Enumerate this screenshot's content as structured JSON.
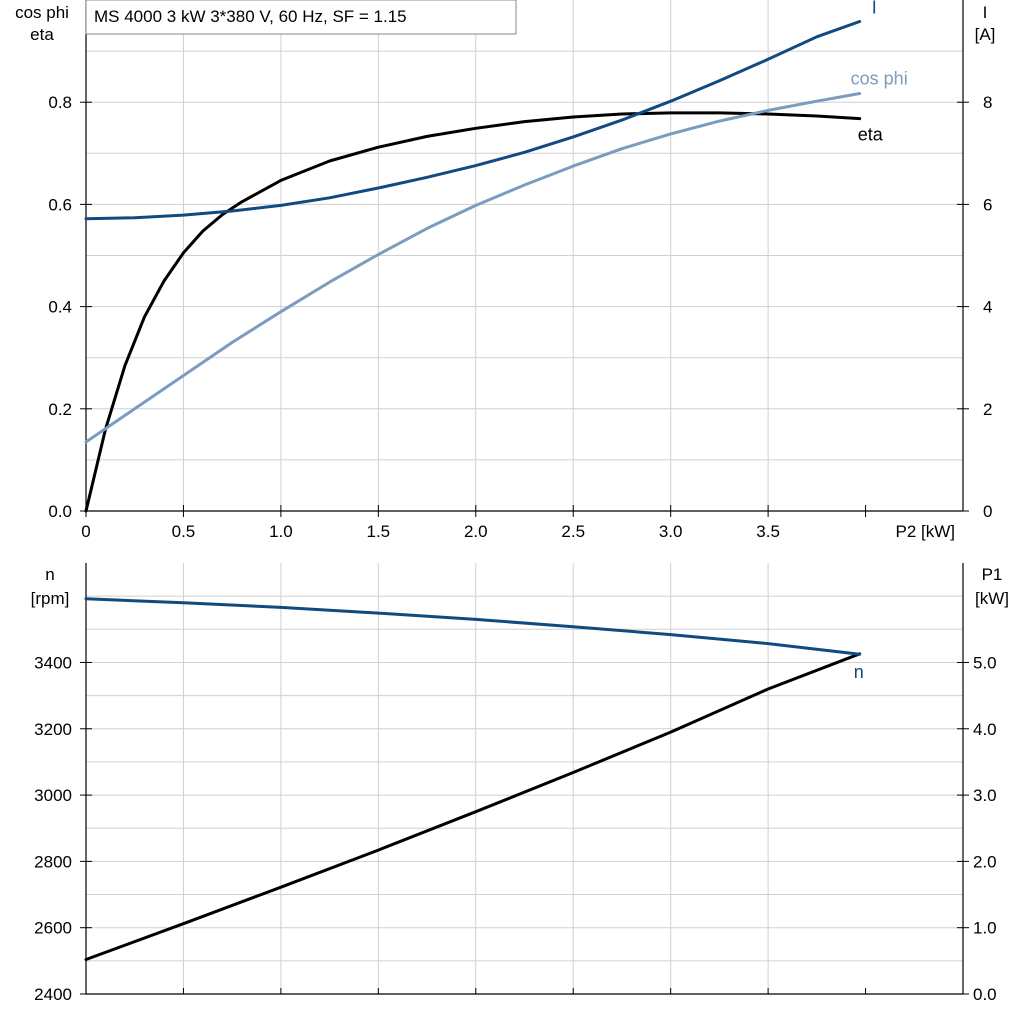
{
  "chart_data": [
    {
      "type": "line",
      "title": "MS 4000   3 kW   3*380 V, 60 Hz, SF = 1.15",
      "xlabel": "P2 [kW]",
      "ylabel_left_line1": "cos phi",
      "ylabel_left_line2": "eta",
      "ylabel_right_line1": "I",
      "ylabel_right_line2": "[A]",
      "xlim": [
        0,
        4.5
      ],
      "ylim_left": [
        0,
        1.0
      ],
      "ylim_right": [
        0,
        10
      ],
      "x_ticks": [
        "0",
        "0.5",
        "1.0",
        "1.5",
        "2.0",
        "2.5",
        "3.0",
        "3.5"
      ],
      "x_tick_values": [
        0,
        0.5,
        1.0,
        1.5,
        2.0,
        2.5,
        3.0,
        3.5
      ],
      "y_ticks_left": [
        "0.0",
        "0.2",
        "0.4",
        "0.6",
        "0.8"
      ],
      "y_tick_values_left": [
        0,
        0.2,
        0.4,
        0.6,
        0.8
      ],
      "y_ticks_right": [
        "0",
        "2",
        "4",
        "6",
        "8"
      ],
      "y_tick_values_right": [
        0,
        2,
        4,
        6,
        8
      ],
      "grid": true,
      "series": [
        {
          "name": "I",
          "axis": "right",
          "color": "#0f4a80",
          "x": [
            0,
            0.25,
            0.5,
            0.75,
            1.0,
            1.25,
            1.5,
            1.75,
            2.0,
            2.25,
            2.5,
            2.75,
            3.0,
            3.25,
            3.5,
            3.75,
            3.97
          ],
          "y": [
            5.72,
            5.74,
            5.79,
            5.87,
            5.98,
            6.13,
            6.32,
            6.53,
            6.76,
            7.02,
            7.32,
            7.65,
            8.02,
            8.42,
            8.84,
            9.28,
            9.58
          ]
        },
        {
          "name": "cos phi",
          "axis": "left",
          "color": "#7a9cbf",
          "x": [
            0,
            0.25,
            0.5,
            0.75,
            1.0,
            1.25,
            1.5,
            1.75,
            2.0,
            2.25,
            2.5,
            2.75,
            3.0,
            3.25,
            3.5,
            3.75,
            3.97
          ],
          "y": [
            0.135,
            0.2,
            0.265,
            0.33,
            0.39,
            0.448,
            0.502,
            0.553,
            0.598,
            0.638,
            0.675,
            0.709,
            0.738,
            0.763,
            0.784,
            0.802,
            0.817
          ]
        },
        {
          "name": "eta",
          "axis": "left",
          "color": "#000000",
          "x": [
            0,
            0.1,
            0.2,
            0.3,
            0.4,
            0.5,
            0.6,
            0.7,
            0.8,
            1.0,
            1.25,
            1.5,
            1.75,
            2.0,
            2.25,
            2.5,
            2.75,
            3.0,
            3.25,
            3.5,
            3.75,
            3.97
          ],
          "y": [
            0.0,
            0.16,
            0.285,
            0.38,
            0.45,
            0.505,
            0.548,
            0.58,
            0.605,
            0.647,
            0.685,
            0.712,
            0.733,
            0.749,
            0.762,
            0.771,
            0.777,
            0.779,
            0.779,
            0.777,
            0.773,
            0.768
          ]
        }
      ]
    },
    {
      "type": "line",
      "xlim": [
        0,
        4.5
      ],
      "ylabel_left_line1": "n",
      "ylabel_left_line2": "[rpm]",
      "ylabel_right_line1": "P1",
      "ylabel_right_line2": "[kW]",
      "ylim_left": [
        2400,
        3700
      ],
      "ylim_right": [
        0,
        6.5
      ],
      "y_ticks_left": [
        "2400",
        "2600",
        "2800",
        "3000",
        "3200",
        "3400"
      ],
      "y_tick_values_left": [
        2400,
        2600,
        2800,
        3000,
        3200,
        3400
      ],
      "y_ticks_right": [
        "0.0",
        "1.0",
        "2.0",
        "3.0",
        "4.0",
        "5.0"
      ],
      "y_tick_values_right": [
        0,
        1,
        2,
        3,
        4,
        5
      ],
      "grid": true,
      "series": [
        {
          "name": "n",
          "axis": "left",
          "color": "#0f4a80",
          "x": [
            0,
            0.5,
            1.0,
            1.5,
            2.0,
            2.5,
            3.0,
            3.5,
            3.97
          ],
          "y": [
            3592,
            3580,
            3566,
            3549,
            3530,
            3508,
            3484,
            3457,
            3425
          ]
        },
        {
          "name": "",
          "axis": "right",
          "color": "#000000",
          "x": [
            0,
            0.5,
            1.0,
            1.5,
            2.0,
            2.5,
            3.0,
            3.5,
            3.97
          ],
          "y": [
            0.52,
            1.06,
            1.61,
            2.17,
            2.75,
            3.34,
            3.95,
            4.6,
            5.13
          ]
        }
      ]
    }
  ]
}
